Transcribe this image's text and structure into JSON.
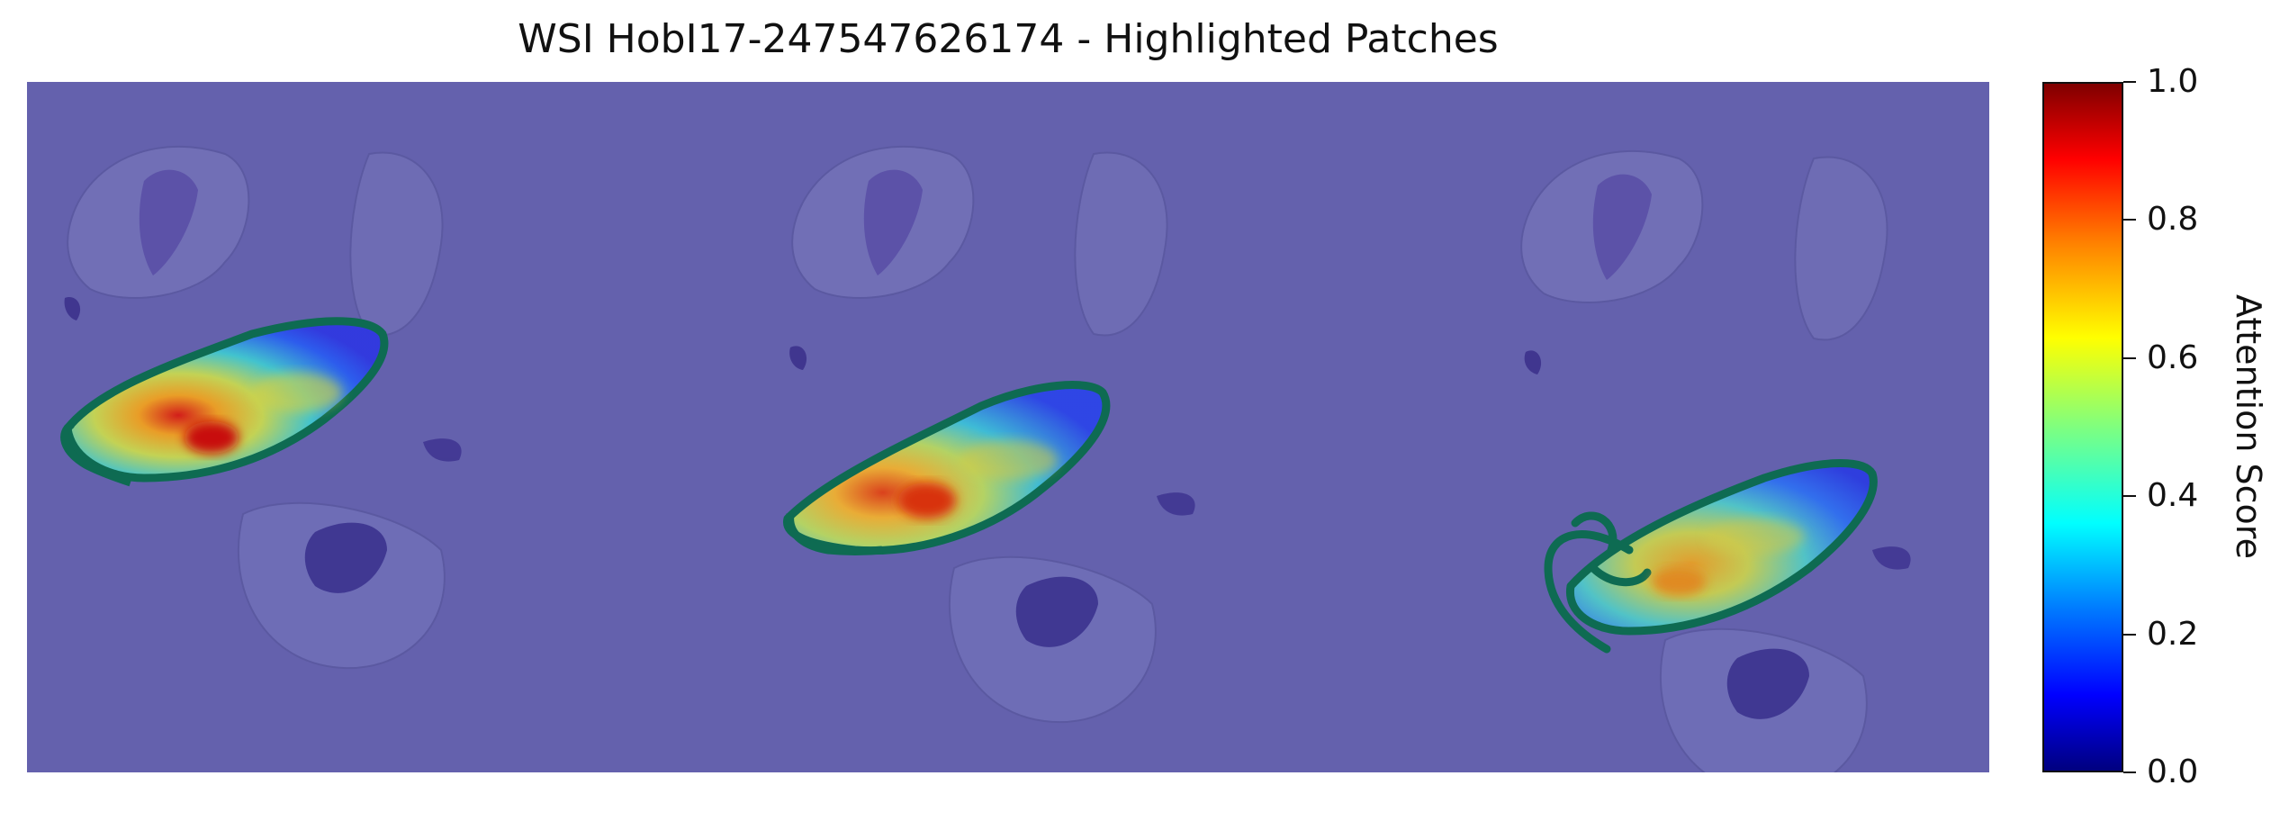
{
  "figure": {
    "title": "WSI HobI17-247547626174 - Highlighted Patches"
  },
  "image": {
    "content": "Three adjacent whole-slide tissue sections with an attention heatmap overlay; each section has a green outlined highlighted region colored blue to red",
    "overlay_background_color": "#6461ad",
    "outline_color": "#0e6b52"
  },
  "colorbar": {
    "label": "Attention Score",
    "colormap": "jet",
    "range": [
      0.0,
      1.0
    ],
    "ticks": [
      {
        "value": 0.0,
        "label": "0.0"
      },
      {
        "value": 0.2,
        "label": "0.2"
      },
      {
        "value": 0.4,
        "label": "0.4"
      },
      {
        "value": 0.6,
        "label": "0.6"
      },
      {
        "value": 0.8,
        "label": "0.8"
      },
      {
        "value": 1.0,
        "label": "1.0"
      }
    ]
  }
}
